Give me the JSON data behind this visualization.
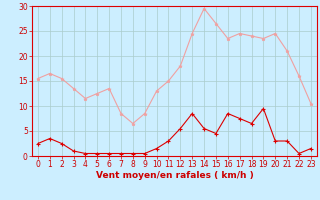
{
  "x": [
    0,
    1,
    2,
    3,
    4,
    5,
    6,
    7,
    8,
    9,
    10,
    11,
    12,
    13,
    14,
    15,
    16,
    17,
    18,
    19,
    20,
    21,
    22,
    23
  ],
  "wind_avg": [
    2.5,
    3.5,
    2.5,
    1.0,
    0.5,
    0.5,
    0.5,
    0.5,
    0.5,
    0.5,
    1.5,
    3.0,
    5.5,
    8.5,
    5.5,
    4.5,
    8.5,
    7.5,
    6.5,
    9.5,
    3.0,
    3.0,
    0.5,
    1.5
  ],
  "wind_gust": [
    15.5,
    16.5,
    15.5,
    13.5,
    11.5,
    12.5,
    13.5,
    8.5,
    6.5,
    8.5,
    13.0,
    15.0,
    18.0,
    24.5,
    29.5,
    26.5,
    23.5,
    24.5,
    24.0,
    23.5,
    24.5,
    21.0,
    16.0,
    10.5
  ],
  "avg_color": "#dd0000",
  "gust_color": "#f0a0a0",
  "background_color": "#cceeff",
  "grid_color": "#aacccc",
  "xlabel": "Vent moyen/en rafales ( km/h )",
  "xlabel_color": "#cc0000",
  "tick_color": "#cc0000",
  "ylim": [
    0,
    30
  ],
  "xlim": [
    -0.5,
    23.5
  ],
  "yticks": [
    0,
    5,
    10,
    15,
    20,
    25,
    30
  ],
  "xticks": [
    0,
    1,
    2,
    3,
    4,
    5,
    6,
    7,
    8,
    9,
    10,
    11,
    12,
    13,
    14,
    15,
    16,
    17,
    18,
    19,
    20,
    21,
    22,
    23
  ],
  "tick_fontsize": 5.5,
  "xlabel_fontsize": 6.5
}
